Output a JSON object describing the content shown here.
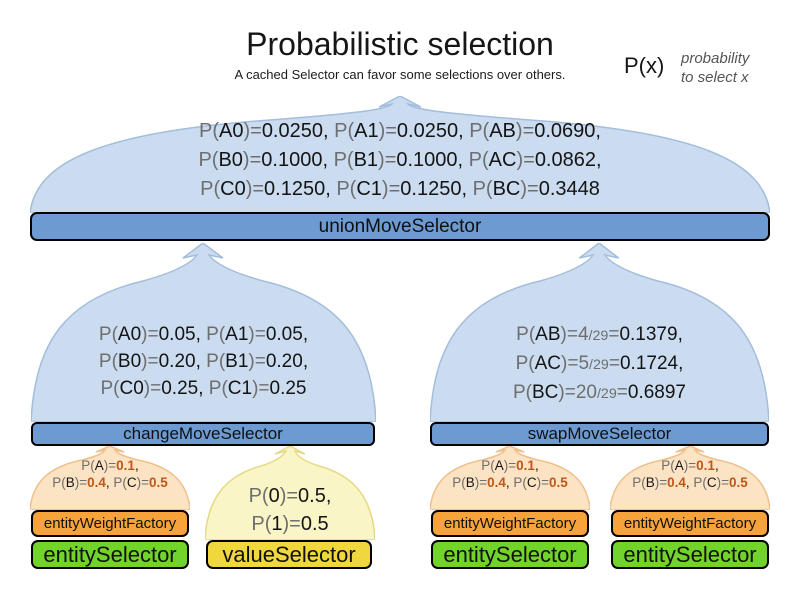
{
  "title": "Probabilistic selection",
  "subtitle": "A cached Selector can favor some selections over others.",
  "legend": {
    "symbol": "P(x)",
    "desc_line1": "probability",
    "desc_line2": "to select x"
  },
  "colors": {
    "selector_bar_blue": "#6d9bd1",
    "funnel_light_blue": "#cbdcf0",
    "weight_bar_orange": "#f6a33c",
    "arch_light_orange": "#fbe3c3",
    "entity_bar_green": "#72d32b",
    "value_bar_yellow": "#f0d73e",
    "arch_light_yellow": "#faf5c6",
    "probability_gray": "#6e6e6e",
    "weight_value_orange": "#c0561a"
  },
  "union": {
    "label": "unionMoveSelector",
    "lines": [
      [
        [
          "P(",
          "g"
        ],
        [
          "A0",
          "b"
        ],
        [
          ")=",
          "g"
        ],
        [
          "0.0250",
          "b"
        ],
        [
          ", ",
          "b"
        ],
        [
          "P(",
          "g"
        ],
        [
          "A1",
          "b"
        ],
        [
          ")=",
          "g"
        ],
        [
          "0.0250",
          "b"
        ],
        [
          ", ",
          "b"
        ],
        [
          "P(",
          "g"
        ],
        [
          "AB",
          "b"
        ],
        [
          ")=",
          "g"
        ],
        [
          "0.0690",
          "b"
        ],
        [
          ",",
          "b"
        ]
      ],
      [
        [
          "P(",
          "g"
        ],
        [
          "B0",
          "b"
        ],
        [
          ")=",
          "g"
        ],
        [
          "0.1000",
          "b"
        ],
        [
          ", ",
          "b"
        ],
        [
          "P(",
          "g"
        ],
        [
          "B1",
          "b"
        ],
        [
          ")=",
          "g"
        ],
        [
          "0.1000",
          "b"
        ],
        [
          ", ",
          "b"
        ],
        [
          "P(",
          "g"
        ],
        [
          "AC",
          "b"
        ],
        [
          ")=",
          "g"
        ],
        [
          "0.0862",
          "b"
        ],
        [
          ",",
          "b"
        ]
      ],
      [
        [
          "P(",
          "g"
        ],
        [
          "C0",
          "b"
        ],
        [
          ")=",
          "g"
        ],
        [
          "0.1250",
          "b"
        ],
        [
          ", ",
          "b"
        ],
        [
          "P(",
          "g"
        ],
        [
          "C1",
          "b"
        ],
        [
          ")=",
          "g"
        ],
        [
          "0.1250",
          "b"
        ],
        [
          ", ",
          "b"
        ],
        [
          "P(",
          "g"
        ],
        [
          "BC",
          "b"
        ],
        [
          ")=",
          "g"
        ],
        [
          "0.3448",
          "b"
        ]
      ]
    ]
  },
  "change": {
    "label": "changeMoveSelector",
    "lines": [
      [
        [
          "P(",
          "g"
        ],
        [
          "A0",
          "b"
        ],
        [
          ")=",
          "g"
        ],
        [
          "0.05",
          "b"
        ],
        [
          ", ",
          "b"
        ],
        [
          "P(",
          "g"
        ],
        [
          "A1",
          "b"
        ],
        [
          ")=",
          "g"
        ],
        [
          "0.05",
          "b"
        ],
        [
          ",",
          "b"
        ]
      ],
      [
        [
          "P(",
          "g"
        ],
        [
          "B0",
          "b"
        ],
        [
          ")=",
          "g"
        ],
        [
          "0.20",
          "b"
        ],
        [
          ", ",
          "b"
        ],
        [
          "P(",
          "g"
        ],
        [
          "B1",
          "b"
        ],
        [
          ")=",
          "g"
        ],
        [
          "0.20",
          "b"
        ],
        [
          ",",
          "b"
        ]
      ],
      [
        [
          "P(",
          "g"
        ],
        [
          "C0",
          "b"
        ],
        [
          ")=",
          "g"
        ],
        [
          "0.25",
          "b"
        ],
        [
          ", ",
          "b"
        ],
        [
          "P(",
          "g"
        ],
        [
          "C1",
          "b"
        ],
        [
          ")=",
          "g"
        ],
        [
          "0.25",
          "b"
        ]
      ]
    ]
  },
  "swap": {
    "label": "swapMoveSelector",
    "lines": [
      [
        [
          "P(",
          "g"
        ],
        [
          "AB",
          "b"
        ],
        [
          ")=",
          "g"
        ],
        [
          "4",
          "g"
        ],
        [
          "/29",
          "f"
        ],
        [
          "=",
          "g"
        ],
        [
          "0.1379",
          "b"
        ],
        [
          ",",
          "b"
        ]
      ],
      [
        [
          "P(",
          "g"
        ],
        [
          "AC",
          "b"
        ],
        [
          ")=",
          "g"
        ],
        [
          "5",
          "g"
        ],
        [
          "/29",
          "f"
        ],
        [
          "=",
          "g"
        ],
        [
          "0.1724",
          "b"
        ],
        [
          ",",
          "b"
        ]
      ],
      [
        [
          "P(",
          "g"
        ],
        [
          "BC",
          "b"
        ],
        [
          ")=",
          "g"
        ],
        [
          "20",
          "g"
        ],
        [
          "/29",
          "f"
        ],
        [
          "=",
          "g"
        ],
        [
          "0.6897",
          "b"
        ]
      ]
    ]
  },
  "entity_arch_lines": [
    [
      [
        "P(",
        "g"
      ],
      [
        "A",
        "b"
      ],
      [
        ")=",
        "g"
      ],
      [
        "0.1",
        "o"
      ],
      [
        ",",
        "b"
      ]
    ],
    [
      [
        "P(",
        "g"
      ],
      [
        "B",
        "b"
      ],
      [
        ")=",
        "g"
      ],
      [
        "0.4",
        "o"
      ],
      [
        ", ",
        "b"
      ],
      [
        "P(",
        "g"
      ],
      [
        "C",
        "b"
      ],
      [
        ")=",
        "g"
      ],
      [
        "0.5",
        "o"
      ]
    ]
  ],
  "value_arch_lines": [
    [
      [
        "P(",
        "g"
      ],
      [
        "0",
        "b"
      ],
      [
        ")=",
        "g"
      ],
      [
        "0.5",
        "b"
      ],
      [
        ",",
        "b"
      ]
    ],
    [
      [
        "P(",
        "g"
      ],
      [
        "1",
        "b"
      ],
      [
        ")=",
        "g"
      ],
      [
        "0.5",
        "b"
      ]
    ]
  ],
  "stacks": [
    {
      "kind": "entity",
      "weight_label": "entityWeightFactory",
      "selector_label": "entitySelector"
    },
    {
      "kind": "value",
      "selector_label": "valueSelector"
    },
    {
      "kind": "entity",
      "weight_label": "entityWeightFactory",
      "selector_label": "entitySelector"
    },
    {
      "kind": "entity",
      "weight_label": "entityWeightFactory",
      "selector_label": "entitySelector"
    }
  ]
}
